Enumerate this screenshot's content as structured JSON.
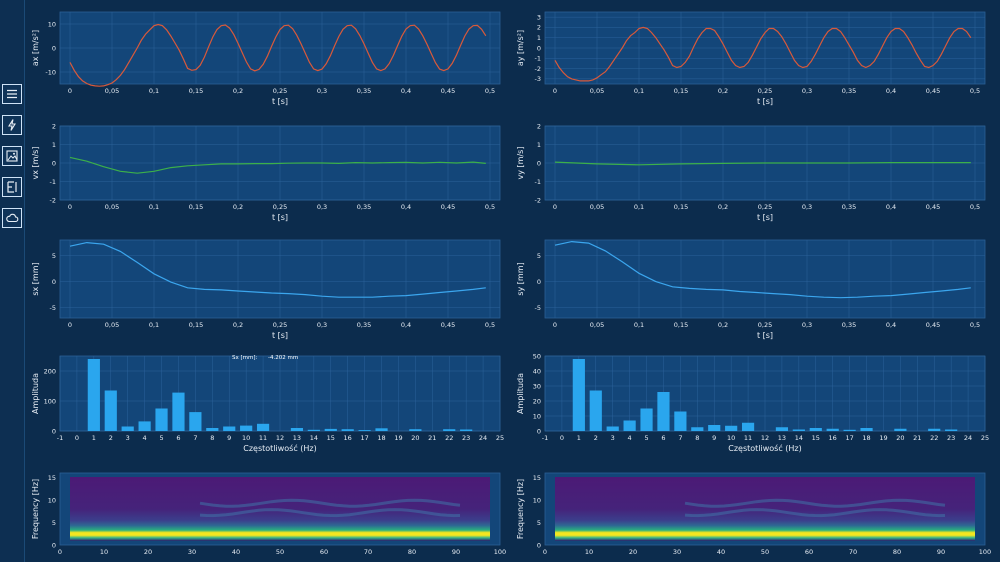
{
  "sidebar": {
    "icons": [
      "menu-icon",
      "flash-icon",
      "image-icon",
      "export-icon",
      "cloud-icon"
    ]
  },
  "colors": {
    "ax": "#d9593a",
    "vx": "#3cb04a",
    "sx": "#3ba6ee",
    "bar": "#2aa6ee"
  },
  "tooltip": {
    "label": "Sx [mm]:",
    "value": "-4.202 mm"
  },
  "chart_data": [
    {
      "id": "ax",
      "type": "line",
      "xlabel": "t [s]",
      "ylabel": "ax [m/s²]",
      "xlim": [
        0,
        0.5
      ],
      "ylim": [
        -15,
        15
      ],
      "xticks": [
        "0",
        "0,05",
        "0,1",
        "0,15",
        "0,2",
        "0,25",
        "0,3",
        "0,35",
        "0,4",
        "0,45",
        "0,5"
      ],
      "yticks": [
        "10",
        "0",
        "-10"
      ],
      "x": [
        0,
        0.005,
        0.01,
        0.015,
        0.02,
        0.025,
        0.03,
        0.035,
        0.04,
        0.045,
        0.05,
        0.055,
        0.06,
        0.065,
        0.07,
        0.075,
        0.08,
        0.085,
        0.09,
        0.095,
        0.1,
        0.105,
        0.11,
        0.115,
        0.12,
        0.125,
        0.13,
        0.135,
        0.14,
        0.145,
        0.15,
        0.155,
        0.16,
        0.165,
        0.17,
        0.175,
        0.18,
        0.185,
        0.19,
        0.195,
        0.2,
        0.205,
        0.21,
        0.215,
        0.22,
        0.225,
        0.23,
        0.235,
        0.24,
        0.245,
        0.25,
        0.255,
        0.26,
        0.265,
        0.27,
        0.275,
        0.28,
        0.285,
        0.29,
        0.295,
        0.3,
        0.305,
        0.31,
        0.315,
        0.32,
        0.325,
        0.33,
        0.335,
        0.34,
        0.345,
        0.35,
        0.355,
        0.36,
        0.365,
        0.37,
        0.375,
        0.38,
        0.385,
        0.39,
        0.395,
        0.4,
        0.405,
        0.41,
        0.415,
        0.42,
        0.425,
        0.43,
        0.435,
        0.44,
        0.445,
        0.45,
        0.455,
        0.46,
        0.465,
        0.47,
        0.475,
        0.48,
        0.485,
        0.49,
        0.495
      ],
      "y": [
        -6,
        -9.3,
        -11.9,
        -13.7,
        -14.8,
        -15.5,
        -15.8,
        -15.9,
        -15.8,
        -15.3,
        -14.6,
        -13.2,
        -11.4,
        -9,
        -6,
        -3,
        0,
        3.3,
        5.8,
        7.6,
        9.3,
        9.8,
        9.3,
        7.6,
        5,
        2.1,
        -0.9,
        -4.6,
        -8.5,
        -9.3,
        -9,
        -7.2,
        -3.8,
        0.5,
        4.6,
        7.7,
        9.3,
        9.6,
        8.3,
        5.6,
        2,
        -1.9,
        -5.8,
        -8.7,
        -9.5,
        -8.9,
        -6.8,
        -3.4,
        0.7,
        4.6,
        7.7,
        9.3,
        9.5,
        8.1,
        5.3,
        1.8,
        -2.1,
        -5.9,
        -8.7,
        -9.4,
        -8.8,
        -6.6,
        -3.2,
        0.9,
        4.8,
        7.8,
        9.3,
        9.5,
        8,
        5.2,
        1.7,
        -2.2,
        -6,
        -8.7,
        -9.4,
        -8.7,
        -6.5,
        -3.1,
        1,
        4.9,
        7.9,
        9.3,
        9.5,
        7.9,
        5.1,
        1.6,
        -2.3,
        -6.1,
        -8.8,
        -9.4,
        -8.7,
        -6.4,
        -3,
        1.1,
        5,
        7.9,
        9.3,
        9.4,
        7.8,
        5.1
      ]
    },
    {
      "id": "ay",
      "type": "line",
      "xlabel": "t [s]",
      "ylabel": "ay [m/s²]",
      "xlim": [
        0,
        0.5
      ],
      "ylim": [
        -3.5,
        3.5
      ],
      "xticks": [
        "0",
        "0,05",
        "0,1",
        "0,15",
        "0,2",
        "0,25",
        "0,3",
        "0,35",
        "0,4",
        "0,45",
        "0,5"
      ],
      "yticks": [
        "3",
        "2",
        "1",
        "0",
        "-1",
        "-2",
        "-3"
      ],
      "x": [
        0,
        0.005,
        0.01,
        0.015,
        0.02,
        0.025,
        0.03,
        0.035,
        0.04,
        0.045,
        0.05,
        0.055,
        0.06,
        0.065,
        0.07,
        0.075,
        0.08,
        0.085,
        0.09,
        0.095,
        0.1,
        0.105,
        0.11,
        0.115,
        0.12,
        0.125,
        0.13,
        0.135,
        0.14,
        0.145,
        0.15,
        0.155,
        0.16,
        0.165,
        0.17,
        0.175,
        0.18,
        0.185,
        0.19,
        0.195,
        0.2,
        0.205,
        0.21,
        0.215,
        0.22,
        0.225,
        0.23,
        0.235,
        0.24,
        0.245,
        0.25,
        0.255,
        0.26,
        0.265,
        0.27,
        0.275,
        0.28,
        0.285,
        0.29,
        0.295,
        0.3,
        0.305,
        0.31,
        0.315,
        0.32,
        0.325,
        0.33,
        0.335,
        0.34,
        0.345,
        0.35,
        0.355,
        0.36,
        0.365,
        0.37,
        0.375,
        0.38,
        0.385,
        0.39,
        0.395,
        0.4,
        0.405,
        0.41,
        0.415,
        0.42,
        0.425,
        0.43,
        0.435,
        0.44,
        0.445,
        0.45,
        0.455,
        0.46,
        0.465,
        0.47,
        0.475,
        0.48,
        0.485,
        0.49,
        0.495
      ],
      "y": [
        -1.2,
        -1.9,
        -2.4,
        -2.8,
        -3,
        -3.1,
        -3.2,
        -3.2,
        -3.2,
        -3.1,
        -2.9,
        -2.6,
        -2.3,
        -1.8,
        -1.2,
        -0.6,
        0,
        0.7,
        1.2,
        1.5,
        1.9,
        2,
        1.9,
        1.5,
        1,
        0.4,
        -0.2,
        -0.9,
        -1.7,
        -1.9,
        -1.8,
        -1.4,
        -0.8,
        0.1,
        0.9,
        1.5,
        1.9,
        1.9,
        1.7,
        1.1,
        0.4,
        -0.4,
        -1.2,
        -1.7,
        -1.9,
        -1.8,
        -1.4,
        -0.7,
        0.1,
        0.9,
        1.5,
        1.9,
        1.9,
        1.6,
        1.1,
        0.4,
        -0.4,
        -1.2,
        -1.7,
        -1.9,
        -1.8,
        -1.3,
        -0.6,
        0.2,
        1,
        1.6,
        1.9,
        1.9,
        1.6,
        1,
        0.3,
        -0.4,
        -1.2,
        -1.7,
        -1.9,
        -1.7,
        -1.3,
        -0.6,
        0.2,
        1,
        1.6,
        1.9,
        1.9,
        1.6,
        1,
        0.3,
        -0.5,
        -1.2,
        -1.8,
        -1.9,
        -1.7,
        -1.3,
        -0.6,
        0.2,
        1,
        1.6,
        1.9,
        1.9,
        1.6,
        1
      ]
    },
    {
      "id": "vx",
      "type": "line",
      "xlabel": "t [s]",
      "ylabel": "vx [m/s]",
      "xlim": [
        0,
        0.5
      ],
      "ylim": [
        -2,
        2
      ],
      "xticks": [
        "0",
        "0,05",
        "0,1",
        "0,15",
        "0,2",
        "0,25",
        "0,3",
        "0,35",
        "0,4",
        "0,45",
        "0,5"
      ],
      "yticks": [
        "2",
        "1",
        "0",
        "-1",
        "-2"
      ],
      "x": [
        0,
        0.02,
        0.04,
        0.06,
        0.08,
        0.1,
        0.12,
        0.14,
        0.16,
        0.18,
        0.2,
        0.22,
        0.24,
        0.26,
        0.28,
        0.3,
        0.32,
        0.34,
        0.36,
        0.38,
        0.4,
        0.42,
        0.44,
        0.46,
        0.48,
        0.495
      ],
      "y": [
        0.3,
        0.1,
        -0.2,
        -0.45,
        -0.55,
        -0.45,
        -0.25,
        -0.15,
        -0.1,
        -0.05,
        -0.05,
        -0.03,
        -0.03,
        -0.01,
        0,
        0,
        -0.02,
        0.02,
        0,
        0.02,
        0.03,
        0,
        0.04,
        0,
        0.05,
        -0.02
      ]
    },
    {
      "id": "vy",
      "type": "line",
      "xlabel": "t [s]",
      "ylabel": "vy [m/s]",
      "xlim": [
        0,
        0.5
      ],
      "ylim": [
        -2,
        2
      ],
      "xticks": [
        "0",
        "0,05",
        "0,1",
        "0,15",
        "0,2",
        "0,25",
        "0,3",
        "0,35",
        "0,4",
        "0,45",
        "0,5"
      ],
      "yticks": [
        "2",
        "1",
        "0",
        "-1",
        "-2"
      ],
      "x": [
        0,
        0.05,
        0.1,
        0.15,
        0.2,
        0.25,
        0.3,
        0.35,
        0.4,
        0.45,
        0.495
      ],
      "y": [
        0.05,
        -0.05,
        -0.1,
        -0.05,
        -0.02,
        0,
        0,
        0,
        0.02,
        0.02,
        0.02
      ]
    },
    {
      "id": "sx",
      "type": "line",
      "xlabel": "t [s]",
      "ylabel": "sx [mm]",
      "xlim": [
        0,
        0.5
      ],
      "ylim": [
        -7,
        8
      ],
      "xticks": [
        "0",
        "0,05",
        "0,1",
        "0,15",
        "0,2",
        "0,25",
        "0,3",
        "0,35",
        "0,4",
        "0,45",
        "0,5"
      ],
      "yticks": [
        "5",
        "0",
        "-5"
      ],
      "x": [
        0,
        0.02,
        0.04,
        0.06,
        0.08,
        0.1,
        0.12,
        0.14,
        0.16,
        0.18,
        0.2,
        0.22,
        0.24,
        0.26,
        0.28,
        0.3,
        0.32,
        0.34,
        0.36,
        0.38,
        0.4,
        0.42,
        0.44,
        0.46,
        0.48,
        0.495
      ],
      "y": [
        6.8,
        7.5,
        7.2,
        5.8,
        3.7,
        1.5,
        -0.1,
        -1.2,
        -1.5,
        -1.6,
        -1.8,
        -2,
        -2.2,
        -2.3,
        -2.5,
        -2.8,
        -3,
        -3,
        -3,
        -2.8,
        -2.7,
        -2.4,
        -2.1,
        -1.8,
        -1.5,
        -1.2
      ]
    },
    {
      "id": "sy",
      "type": "line",
      "xlabel": "t [s]",
      "ylabel": "sy [mm]",
      "xlim": [
        0,
        0.5
      ],
      "ylim": [
        -7,
        8
      ],
      "xticks": [
        "0",
        "0,05",
        "0,1",
        "0,15",
        "0,2",
        "0,25",
        "0,3",
        "0,35",
        "0,4",
        "0,45",
        "0,5"
      ],
      "yticks": [
        "5",
        "0",
        "-5"
      ],
      "x": [
        0,
        0.02,
        0.04,
        0.06,
        0.08,
        0.1,
        0.12,
        0.14,
        0.16,
        0.18,
        0.2,
        0.22,
        0.24,
        0.26,
        0.28,
        0.3,
        0.32,
        0.34,
        0.36,
        0.38,
        0.4,
        0.42,
        0.44,
        0.46,
        0.48,
        0.495
      ],
      "y": [
        7,
        7.7,
        7.4,
        5.9,
        3.8,
        1.6,
        0,
        -1,
        -1.3,
        -1.5,
        -1.6,
        -1.9,
        -2.1,
        -2.3,
        -2.5,
        -2.8,
        -3,
        -3.1,
        -3,
        -2.8,
        -2.7,
        -2.4,
        -2.1,
        -1.8,
        -1.5,
        -1.2
      ]
    },
    {
      "id": "fftx",
      "type": "bar",
      "xlabel": "Częstotliwość (Hz)",
      "ylabel": "Amplituda",
      "xlim": [
        -1,
        25
      ],
      "ylim": [
        0,
        250
      ],
      "xticks": [
        "-1",
        "0",
        "1",
        "2",
        "3",
        "4",
        "5",
        "6",
        "7",
        "8",
        "9",
        "10",
        "11",
        "12",
        "13",
        "14",
        "15",
        "16",
        "17",
        "18",
        "19",
        "20",
        "21",
        "22",
        "23",
        "24",
        "25"
      ],
      "yticks": [
        "200",
        "100",
        "0"
      ],
      "categories": [
        1,
        2,
        3,
        4,
        5,
        6,
        7,
        8,
        9,
        10,
        11,
        13,
        14,
        15,
        16,
        17,
        18,
        20,
        22,
        23
      ],
      "values": [
        240,
        135,
        15,
        32,
        75,
        128,
        63,
        10,
        15,
        18,
        24,
        10,
        4,
        7,
        6,
        3,
        9,
        6,
        6,
        5
      ]
    },
    {
      "id": "ffty",
      "type": "bar",
      "xlabel": "Częstotliwość (Hz)",
      "ylabel": "Amplituda",
      "xlim": [
        -1,
        25
      ],
      "ylim": [
        0,
        50
      ],
      "xticks": [
        "-1",
        "0",
        "1",
        "2",
        "3",
        "4",
        "5",
        "6",
        "7",
        "8",
        "9",
        "10",
        "11",
        "12",
        "13",
        "14",
        "15",
        "16",
        "17",
        "18",
        "19",
        "20",
        "21",
        "22",
        "23",
        "24",
        "25"
      ],
      "yticks": [
        "50",
        "40",
        "30",
        "20",
        "10",
        "0"
      ],
      "categories": [
        1,
        2,
        3,
        4,
        5,
        6,
        7,
        8,
        9,
        10,
        11,
        13,
        14,
        15,
        16,
        17,
        18,
        20,
        22,
        23
      ],
      "values": [
        48,
        27,
        3,
        7,
        15,
        26,
        13,
        2.5,
        4,
        3.5,
        5.5,
        2.5,
        1,
        2,
        1.5,
        0.8,
        2,
        1.5,
        1.5,
        1
      ]
    },
    {
      "id": "specx",
      "type": "heatmap",
      "xlabel": "",
      "ylabel": "Frequency [Hz]",
      "xlim": [
        0,
        100
      ],
      "ylim": [
        0,
        16
      ],
      "xticks": [
        "0",
        "10",
        "20",
        "30",
        "40",
        "50",
        "60",
        "70",
        "80",
        "90",
        "100"
      ],
      "yticks": [
        "15",
        "10",
        "5",
        "0"
      ]
    },
    {
      "id": "specy",
      "type": "heatmap",
      "xlabel": "",
      "ylabel": "Frequency [Hz]",
      "xlim": [
        0,
        100
      ],
      "ylim": [
        0,
        16
      ],
      "xticks": [
        "0",
        "10",
        "20",
        "30",
        "40",
        "50",
        "60",
        "70",
        "80",
        "90",
        "100"
      ],
      "yticks": [
        "15",
        "10",
        "5",
        "0"
      ]
    }
  ]
}
